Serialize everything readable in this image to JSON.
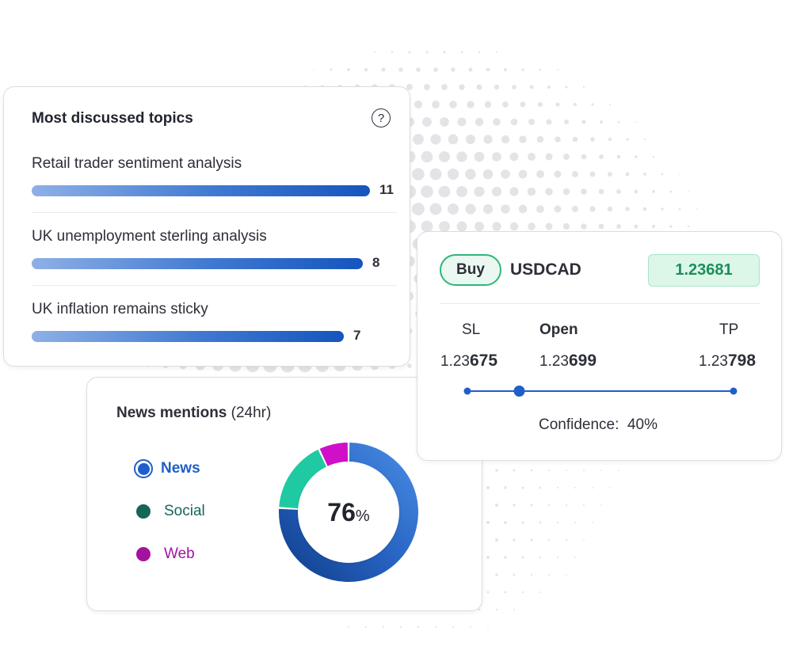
{
  "colors": {
    "bar_gradient": [
      "#8eb0e6",
      "#1555bd"
    ],
    "news": "#1f5fc9",
    "social": "#13665a",
    "web": "#a3139e",
    "buy_green": "#2fb67b",
    "price_green": "#1a8f5a",
    "slider_blue": "#1f5fc9",
    "dots": "#e3e4e8"
  },
  "topics": {
    "title": "Most discussed topics",
    "help_icon": "question-circle-icon",
    "items": [
      {
        "label": "Retail trader sentiment analysis",
        "count": "11",
        "value": 11
      },
      {
        "label": "UK unemployment sterling analysis",
        "count": "8",
        "value": 8
      },
      {
        "label": "UK inflation remains sticky",
        "count": "7",
        "value": 7
      }
    ]
  },
  "news": {
    "title_bold": "News mentions",
    "title_suffix": "(24hr)",
    "legend": [
      {
        "label": "News",
        "color": "#1f5fc9"
      },
      {
        "label": "Social",
        "color": "#13665a"
      },
      {
        "label": "Web",
        "color": "#a3139e"
      }
    ],
    "donut": {
      "percent_value": "76",
      "percent_sign": "%",
      "segments": [
        {
          "name": "News",
          "value": 76,
          "colors": [
            "#4a8ee6",
            "#0f3c86"
          ]
        },
        {
          "name": "Social",
          "value": 17,
          "colors": [
            "#1fcaa2",
            "#1fcaa2"
          ]
        },
        {
          "name": "Web",
          "value": 7,
          "colors": [
            "#cf10c8",
            "#cf10c8"
          ]
        }
      ]
    }
  },
  "trade": {
    "side": "Buy",
    "symbol": "USDCAD",
    "price": "1.23681",
    "columns": {
      "sl": {
        "label": "SL",
        "prefix": "1.23",
        "suffix": "675"
      },
      "open": {
        "label": "Open",
        "prefix": "1.23",
        "suffix": "699"
      },
      "tp": {
        "label": "TP",
        "prefix": "1.23",
        "suffix": "798"
      }
    },
    "slider_open_fraction": 0.195,
    "confidence_label": "Confidence:",
    "confidence_value": "40%"
  }
}
